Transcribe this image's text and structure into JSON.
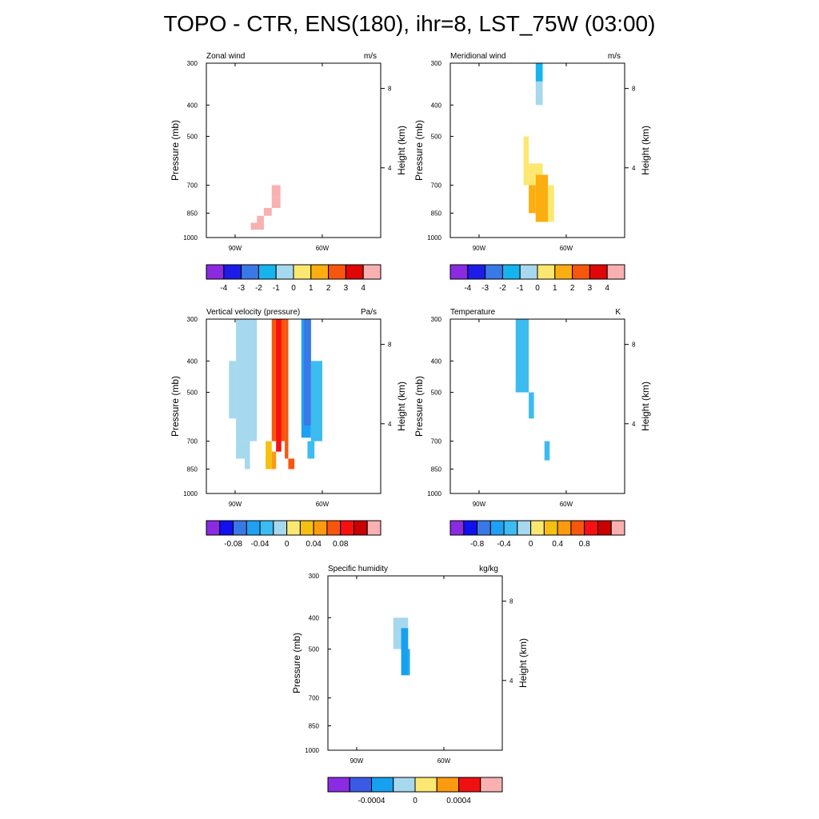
{
  "title": "TOPO - CTR, ENS(180), ihr=8, LST_75W (03:00)",
  "colors": {
    "axis": "#000000",
    "background": "#ffffff"
  },
  "chart_data": [
    {
      "type": "heatmap",
      "title": "Zonal wind",
      "units": "m/s",
      "ylabel": "Pressure (mb)",
      "ylabel_right": "Height (km)",
      "x_ticks": [
        "90W",
        "60W"
      ],
      "y_ticks": [
        300,
        400,
        500,
        700,
        850,
        1000
      ],
      "right_ticks": [
        "8",
        "4"
      ],
      "colorbar": {
        "colors": [
          "#8a2be2",
          "#1c1ce6",
          "#3a78e6",
          "#16b4ee",
          "#a6d8ee",
          "#fce870",
          "#fcae10",
          "#f8560c",
          "#de0606",
          "#f8b0b0"
        ],
        "labels": [
          "-4",
          "-3",
          "-2",
          "-1",
          "0",
          "1",
          "2",
          "3",
          "4"
        ]
      }
    },
    {
      "type": "heatmap",
      "title": "Meridional wind",
      "units": "m/s",
      "ylabel": "Pressure (mb)",
      "ylabel_right": "Height (km)",
      "x_ticks": [
        "90W",
        "60W"
      ],
      "y_ticks": [
        300,
        400,
        500,
        700,
        850,
        1000
      ],
      "right_ticks": [
        "8",
        "4"
      ],
      "colorbar": {
        "colors": [
          "#8a2be2",
          "#1c1ce6",
          "#3a78e6",
          "#16b4ee",
          "#a6d8ee",
          "#fce870",
          "#fcae10",
          "#f8560c",
          "#de0606",
          "#f8b0b0"
        ],
        "labels": [
          "-4",
          "-3",
          "-2",
          "-1",
          "0",
          "1",
          "2",
          "3",
          "4"
        ]
      }
    },
    {
      "type": "heatmap",
      "title": "Vertical velocity (pressure)",
      "units": "Pa/s",
      "ylabel": "Pressure (mb)",
      "ylabel_right": "Height (km)",
      "x_ticks": [
        "90W",
        "60W"
      ],
      "y_ticks": [
        300,
        400,
        500,
        700,
        850,
        1000
      ],
      "right_ticks": [
        "8",
        "4"
      ],
      "colorbar": {
        "colors": [
          "#8a2be2",
          "#1010f0",
          "#3a78e6",
          "#1ea0f5",
          "#3cbcf0",
          "#a6d8ee",
          "#fce870",
          "#f6c010",
          "#fc9a10",
          "#f8560c",
          "#f81010",
          "#c80000",
          "#f8b0b0"
        ],
        "labels": [
          "-0.08",
          "-0.04",
          "0",
          "0.04",
          "0.08"
        ]
      }
    },
    {
      "type": "heatmap",
      "title": "Temperature",
      "units": "K",
      "ylabel": "Pressure (mb)",
      "ylabel_right": "Height (km)",
      "x_ticks": [
        "90W",
        "60W"
      ],
      "y_ticks": [
        300,
        400,
        500,
        700,
        850,
        1000
      ],
      "right_ticks": [
        "8",
        "4"
      ],
      "colorbar": {
        "colors": [
          "#8a2be2",
          "#1010f0",
          "#3a78e6",
          "#1ea0f5",
          "#3cbcf0",
          "#a6d8ee",
          "#fce870",
          "#f6c010",
          "#fc9a10",
          "#f8560c",
          "#f81010",
          "#c80000",
          "#f8b0b0"
        ],
        "labels": [
          "-0.8",
          "-0.4",
          "0",
          "0.4",
          "0.8"
        ]
      }
    },
    {
      "type": "heatmap",
      "title": "Specific humidity",
      "units": "kg/kg",
      "ylabel": "Pressure (mb)",
      "ylabel_right": "Height (km)",
      "x_ticks": [
        "90W",
        "60W"
      ],
      "y_ticks": [
        300,
        400,
        500,
        700,
        850,
        1000
      ],
      "right_ticks": [
        "8",
        "4"
      ],
      "colorbar": {
        "colors": [
          "#8a2be2",
          "#3a5ae6",
          "#16a0f0",
          "#a6d8ee",
          "#fce870",
          "#fc9a10",
          "#f01010",
          "#f8b0b0"
        ],
        "labels": [
          "-0.0004",
          "0",
          "0.0004"
        ]
      }
    }
  ]
}
